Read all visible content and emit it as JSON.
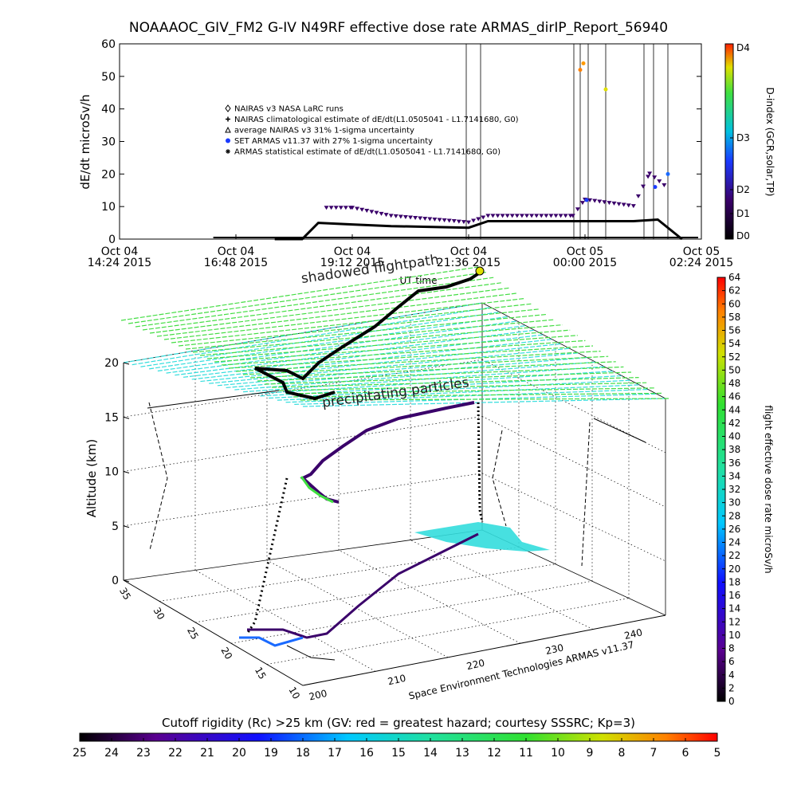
{
  "title": "NOAAAOC_GIV_FM2 G-IV    N49RF   effective dose rate ARMAS_dirIP_Report_56940",
  "top_chart": {
    "ylabel": "dE/dt microSv/h",
    "y_ticks": [
      "0",
      "10",
      "20",
      "30",
      "40",
      "50",
      "60"
    ],
    "x_ticks": [
      {
        "date": "Oct 04",
        "time": "14:24 2015"
      },
      {
        "date": "Oct 04",
        "time": "16:48 2015"
      },
      {
        "date": "Oct 04",
        "time": "19:12 2015"
      },
      {
        "date": "Oct 04",
        "time": "21:36 2015"
      },
      {
        "date": "Oct 05",
        "time": "00:00 2015"
      },
      {
        "date": "Oct 05",
        "time": "02:24 2015"
      }
    ],
    "xlabel": "UT time",
    "legend": [
      {
        "marker": "diamond",
        "text": "NAIRAS v3 NASA LaRC runs"
      },
      {
        "marker": "plus",
        "text": "NAIRAS climatological estimate of dE/dt(L1.0505041 - L1.7141680, G0)"
      },
      {
        "marker": "triangle",
        "text": "average NAIRAS v3 31% 1-sigma uncertainty"
      },
      {
        "marker": "dot",
        "text": "SET ARMAS v11.37 with 27% 1-sigma uncertainty"
      },
      {
        "marker": "asterisk",
        "text": "ARMAS statistical estimate of dE/dt(L1.0505041 - L1.7141680, G0)"
      }
    ],
    "dindex_label": "D-index (GCR,solar,TP)",
    "dindex_ticks": [
      "D0",
      "D1",
      "D2",
      "D3",
      "D4"
    ]
  },
  "chart_data": [
    {
      "type": "scatter",
      "title": "NOAAAOC_GIV_FM2 G-IV    N49RF   effective dose rate ARMAS_dirIP_Report_56940",
      "xlabel": "UT time",
      "ylabel": "dE/dt microSv/h",
      "ylim": [
        0,
        60
      ],
      "xlim": [
        "2015-10-04 14:24",
        "2015-10-05 02:24"
      ],
      "series": [
        {
          "name": "NAIRAS climatological estimate of dE/dt(L1.0505041 - L1.7141680, G0)",
          "x": [
            "17:36",
            "18:10",
            "18:30",
            "19:12",
            "20:00",
            "21:36",
            "22:00",
            "23:00",
            "00:00",
            "01:00",
            "01:30",
            "02:00"
          ],
          "y": [
            0,
            0,
            5,
            4.5,
            4,
            3.5,
            5.5,
            5.5,
            5.5,
            5.5,
            6,
            0
          ]
        },
        {
          "name": "SET ARMAS v11.37 with 27% 1-sigma uncertainty",
          "x": [
            "18:40",
            "19:12",
            "20:00",
            "21:36",
            "22:00",
            "23:00",
            "23:45",
            "00:00",
            "01:00",
            "01:20",
            "01:40"
          ],
          "y": [
            9.5,
            9.5,
            7,
            5,
            7,
            7,
            7,
            12,
            10,
            20,
            16
          ]
        }
      ]
    },
    {
      "type": "scatter",
      "title": "",
      "ylabel": "Altitude (km)",
      "zlim": [
        0,
        20
      ],
      "z_ticks": [
        "0",
        "5",
        "10",
        "15",
        "20"
      ],
      "lon_ticks": [
        "200",
        "210",
        "220",
        "230",
        "240"
      ],
      "lat_ticks": [
        "10",
        "15",
        "20",
        "25",
        "30",
        "35"
      ]
    }
  ],
  "labels_3d": {
    "shadowed": "shadowed flightpath",
    "precipitating": "precipitating particles",
    "credit": "Space Environment Technologies ARMAS v11.37",
    "ylabel": "Altitude (km)",
    "z_ticks": [
      "0",
      "5",
      "10",
      "15",
      "20"
    ],
    "lon_ticks": [
      "200",
      "210",
      "220",
      "230",
      "240"
    ],
    "lat_ticks": [
      "10",
      "15",
      "20",
      "25",
      "30",
      "35"
    ]
  },
  "right_bar": {
    "label": "flight effective dose rate microSv/h",
    "ticks": [
      "0",
      "2",
      "4",
      "6",
      "8",
      "10",
      "12",
      "14",
      "16",
      "18",
      "20",
      "22",
      "24",
      "26",
      "28",
      "30",
      "32",
      "34",
      "36",
      "38",
      "40",
      "42",
      "44",
      "46",
      "48",
      "50",
      "52",
      "54",
      "56",
      "58",
      "60",
      "62",
      "64"
    ]
  },
  "bottom_bar": {
    "label": "Cutoff rigidity (Rc) >25 km (GV: red = greatest hazard; courtesy SSSRC; Kp=3)",
    "ticks": [
      "25",
      "24",
      "23",
      "22",
      "21",
      "20",
      "19",
      "18",
      "17",
      "16",
      "15",
      "14",
      "13",
      "12",
      "11",
      "10",
      "9",
      "8",
      "7",
      "6",
      "5"
    ]
  },
  "colors": {
    "green_grid": "#44dd44",
    "cyan_grid": "#33dddd",
    "path_purple": "#3a006a"
  }
}
